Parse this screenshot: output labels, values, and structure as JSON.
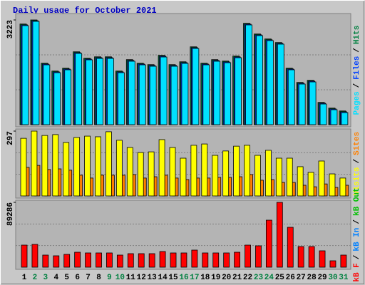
{
  "chart_data": [
    {
      "type": "bar",
      "title": "Daily usage for October 2021",
      "ylim": [
        0,
        3223
      ],
      "yticks": [
        3223
      ],
      "grid": true,
      "legend_separator": "/",
      "series": [
        {
          "name": "Pages",
          "color": "#00e0ff",
          "values": [
            3048,
            3180,
            1842,
            1601,
            1689,
            2193,
            1996,
            2039,
            2039,
            1601,
            1952,
            1842,
            1798,
            2083,
            1798,
            1886,
            2346,
            1842,
            1952,
            1908,
            2061,
            3070,
            2741,
            2588,
            2478,
            1689,
            1250,
            1316,
            636,
            461,
            373
          ]
        },
        {
          "name": "Files",
          "color": "#0040ff",
          "values": [
            3073,
            3200,
            1867,
            1626,
            1714,
            2218,
            2021,
            2064,
            2064,
            1626,
            1977,
            1867,
            1823,
            2108,
            1823,
            1911,
            2371,
            1867,
            1977,
            1933,
            2086,
            3095,
            2766,
            2613,
            2503,
            1714,
            1275,
            1341,
            661,
            486,
            398
          ]
        },
        {
          "name": "Hits",
          "color": "#008040",
          "values": [
            3098,
            3223,
            1892,
            1651,
            1739,
            2243,
            2046,
            2089,
            2089,
            1651,
            2002,
            1892,
            1848,
            2133,
            1848,
            1936,
            2396,
            1892,
            2002,
            1958,
            2111,
            3120,
            2791,
            2638,
            2528,
            1739,
            1300,
            1366,
            686,
            511,
            423
          ]
        }
      ]
    },
    {
      "type": "bar",
      "ylim": [
        0,
        297
      ],
      "yticks": [
        297
      ],
      "grid": true,
      "legend_separator": "/",
      "series": [
        {
          "name": "Visits",
          "color": "#ffff00",
          "values": [
            264,
            297,
            277,
            281,
            245,
            268,
            274,
            271,
            294,
            255,
            222,
            199,
            202,
            258,
            222,
            173,
            232,
            238,
            186,
            206,
            228,
            232,
            186,
            209,
            173,
            173,
            134,
            108,
            160,
            101,
            82
          ]
        },
        {
          "name": "Sites",
          "color": "#ff8000",
          "values": [
            131,
            140,
            121,
            124,
            118,
            95,
            82,
            95,
            95,
            95,
            98,
            82,
            88,
            95,
            82,
            75,
            82,
            82,
            85,
            85,
            88,
            98,
            72,
            75,
            62,
            62,
            49,
            42,
            55,
            39,
            49
          ]
        }
      ]
    },
    {
      "type": "bar",
      "ylim": [
        0,
        89286
      ],
      "yticks": [
        89286
      ],
      "grid": true,
      "legend_separator": "/",
      "categories": [
        "1",
        "2",
        "3",
        "4",
        "5",
        "6",
        "7",
        "8",
        "9",
        "10",
        "11",
        "12",
        "13",
        "14",
        "15",
        "16",
        "17",
        "18",
        "19",
        "20",
        "21",
        "22",
        "23",
        "24",
        "25",
        "26",
        "27",
        "28",
        "29",
        "30",
        "31"
      ],
      "weekend_index": [
        1,
        2,
        8,
        9,
        15,
        16,
        22,
        23,
        29,
        30
      ],
      "weekend_color": "#008040",
      "series": [
        {
          "name": "kB F",
          "color": "#ff0000",
          "values": [
            30411,
            31392,
            16677,
            15696,
            17658,
            20601,
            19620,
            19620,
            19620,
            16677,
            18639,
            18639,
            18639,
            21582,
            19620,
            19620,
            23544,
            19620,
            19620,
            19620,
            20601,
            30411,
            29430,
            64746,
            89286,
            54936,
            28449,
            28449,
            22563,
            8829,
            16677
          ]
        },
        {
          "name": "kB In",
          "color": "#0080ff",
          "values": [
            0,
            0,
            0,
            0,
            0,
            0,
            0,
            0,
            0,
            0,
            0,
            0,
            0,
            0,
            0,
            0,
            0,
            0,
            0,
            0,
            0,
            0,
            0,
            0,
            0,
            0,
            0,
            0,
            0,
            0,
            0
          ]
        },
        {
          "name": "kB Out",
          "color": "#00c000",
          "values": [
            0,
            0,
            0,
            0,
            0,
            0,
            0,
            0,
            0,
            0,
            0,
            0,
            0,
            0,
            0,
            0,
            0,
            0,
            0,
            0,
            0,
            0,
            0,
            0,
            0,
            0,
            0,
            0,
            0,
            0,
            0
          ]
        }
      ]
    }
  ]
}
